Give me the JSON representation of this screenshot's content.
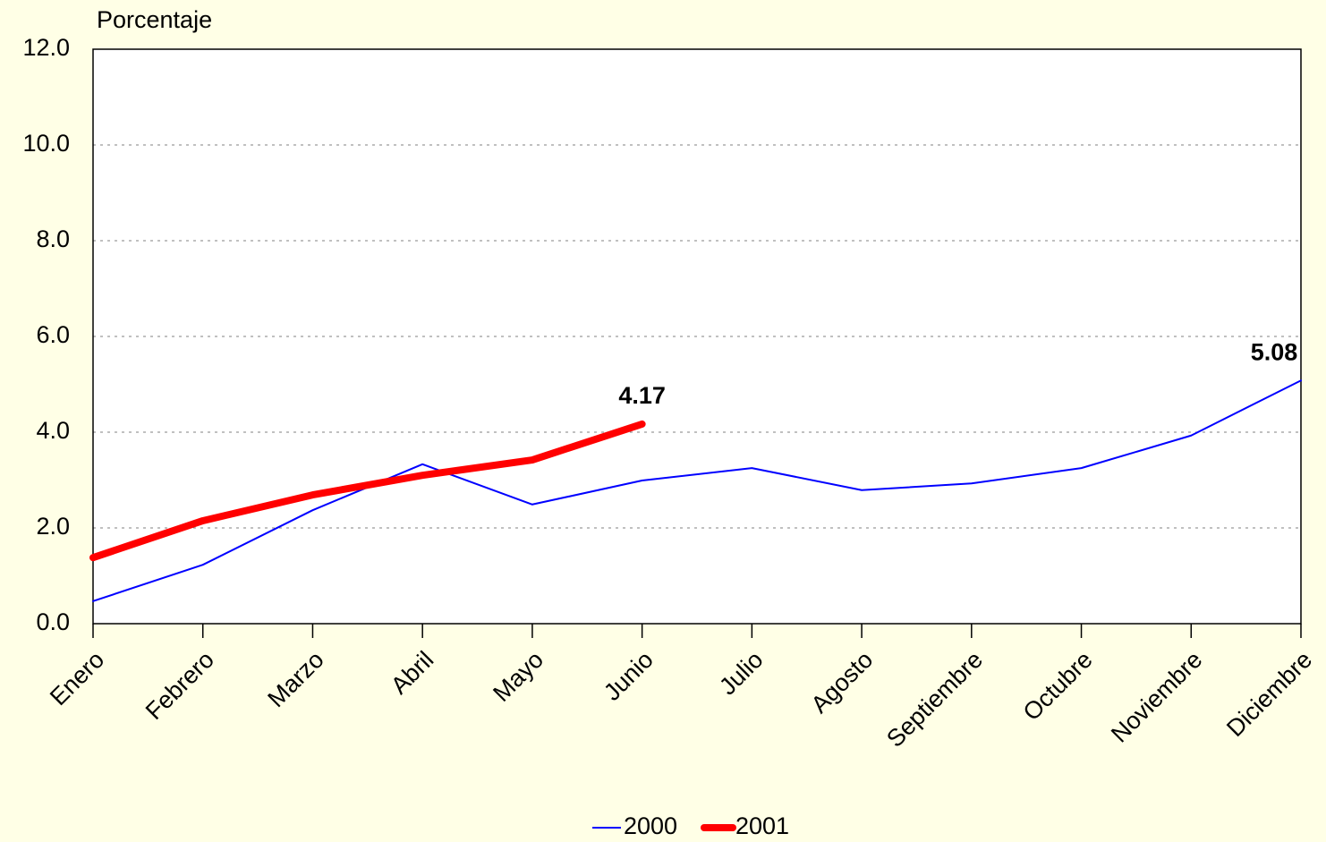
{
  "chart_data": {
    "type": "line",
    "y_label": "Porcentaje",
    "categories": [
      "Enero",
      "Febrero",
      "Marzo",
      "Abril",
      "Mayo",
      "Junio",
      "Julio",
      "Agosto",
      "Septiembre",
      "Octubre",
      "Noviembre",
      "Diciembre"
    ],
    "series": [
      {
        "name": "2000",
        "color": "#0000ff",
        "values": [
          0.47,
          1.23,
          2.37,
          3.33,
          2.49,
          2.99,
          3.25,
          2.79,
          2.93,
          3.25,
          3.93,
          5.08
        ],
        "value_labels": [
          null,
          null,
          null,
          null,
          null,
          null,
          null,
          null,
          null,
          null,
          null,
          "5.08"
        ]
      },
      {
        "name": "2001",
        "color": "#ff0000",
        "values": [
          1.38,
          2.15,
          2.69,
          3.1,
          3.42,
          4.17,
          null,
          null,
          null,
          null,
          null,
          null
        ],
        "value_labels": [
          null,
          null,
          null,
          null,
          null,
          "4.17",
          null,
          null,
          null,
          null,
          null,
          null
        ]
      }
    ],
    "ylim": [
      0,
      12
    ],
    "yticks": [
      {
        "value": 0,
        "label": "0.0"
      },
      {
        "value": 2,
        "label": "2.0"
      },
      {
        "value": 4,
        "label": "4.0"
      },
      {
        "value": 6,
        "label": "6.0"
      },
      {
        "value": 8,
        "label": "8.0"
      },
      {
        "value": 10,
        "label": "10.0"
      },
      {
        "value": 12,
        "label": "12.0"
      }
    ],
    "grid": true,
    "legend": "bottom"
  }
}
